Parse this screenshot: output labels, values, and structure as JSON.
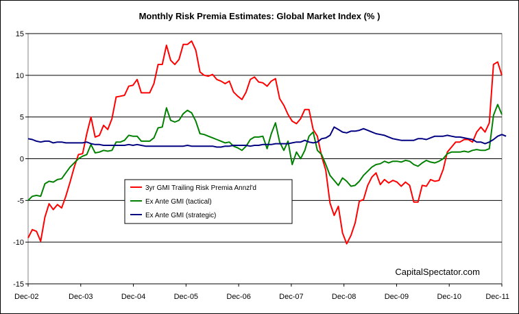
{
  "chart_data": {
    "type": "line",
    "title": "Monthly Risk Premia Estimates: Global Market Index (% )",
    "watermark": "CapitalSpectator.com",
    "ylim": [
      -15,
      15
    ],
    "yticks": [
      15,
      10,
      5,
      0,
      -5,
      -10,
      -15
    ],
    "x_start": "Dec-02",
    "x_end": "Dec-11",
    "xtick_labels": [
      "Dec-02",
      "Dec-03",
      "Dec-04",
      "Dec-05",
      "Dec-06",
      "Dec-07",
      "Dec-08",
      "Dec-09",
      "Dec-10",
      "Dec-11"
    ],
    "grid": "horizontal major gridlines",
    "legend_position": "center-left, inside plot",
    "series": [
      {
        "name": "3yr GMI Trailing Risk Premia Annzl'd",
        "color": "#ff0000",
        "values": [
          -9.5,
          -8.5,
          -8.7,
          -9.9,
          -7.0,
          -5.4,
          -6.1,
          -5.5,
          -5.9,
          -4.5,
          -2.8,
          -1.0,
          0.5,
          0.6,
          3.0,
          5.0,
          2.6,
          2.8,
          4.0,
          3.5,
          4.8,
          7.4,
          7.5,
          7.6,
          8.7,
          8.8,
          9.5,
          7.9,
          7.9,
          7.9,
          9.0,
          11.3,
          11.3,
          13.6,
          11.8,
          11.3,
          11.9,
          13.7,
          13.7,
          14.1,
          13.0,
          10.4,
          10.0,
          9.9,
          10.1,
          9.5,
          9.3,
          9.0,
          9.3,
          8.0,
          7.5,
          7.1,
          8.0,
          9.5,
          9.8,
          9.2,
          9.1,
          8.7,
          9.3,
          9.6,
          7.2,
          6.4,
          5.3,
          4.5,
          4.2,
          4.8,
          5.9,
          5.9,
          3.5,
          2.7,
          0.3,
          -1.4,
          -5.3,
          -6.8,
          -5.7,
          -8.9,
          -10.2,
          -9.2,
          -7.7,
          -5.1,
          -4.9,
          -3.2,
          -2.2,
          -1.7,
          -3.1,
          -2.5,
          -2.9,
          -2.6,
          -2.8,
          -3.3,
          -2.8,
          -3.2,
          -5.2,
          -5.2,
          -3.2,
          -3.3,
          -2.5,
          -2.7,
          -2.6,
          -1.3,
          0.8,
          1.4,
          2.0,
          2.0,
          2.3,
          2.3,
          2.0,
          3.2,
          3.8,
          3.2,
          4.3,
          11.3,
          11.6,
          10.0
        ]
      },
      {
        "name": "Ex Ante GMI (tactical)",
        "color": "#008000",
        "values": [
          -5.0,
          -4.5,
          -4.4,
          -4.5,
          -3.0,
          -2.7,
          -2.8,
          -2.5,
          -2.4,
          -1.7,
          -1.0,
          -0.5,
          0.0,
          0.3,
          0.5,
          1.7,
          0.7,
          0.8,
          1.0,
          0.9,
          1.0,
          2.0,
          2.0,
          2.2,
          2.8,
          2.7,
          2.7,
          2.1,
          2.1,
          2.1,
          2.5,
          3.7,
          3.8,
          6.1,
          4.6,
          4.4,
          4.6,
          5.4,
          5.8,
          5.5,
          4.5,
          3.0,
          2.9,
          2.7,
          2.5,
          2.3,
          2.1,
          1.9,
          2.0,
          1.5,
          1.3,
          1.0,
          1.5,
          2.3,
          2.6,
          2.6,
          2.7,
          1.2,
          3.0,
          4.3,
          2.0,
          1.0,
          2.1,
          -0.7,
          0.8,
          0.0,
          1.0,
          2.7,
          3.2,
          1.0,
          0.5,
          -0.7,
          -2.0,
          -2.6,
          -3.2,
          -2.3,
          -2.7,
          -3.3,
          -3.2,
          -2.7,
          -2.0,
          -1.5,
          -1.0,
          -0.7,
          -0.6,
          -0.3,
          -0.5,
          -0.3,
          -0.3,
          -0.4,
          -0.2,
          -0.3,
          -0.7,
          -0.9,
          -0.5,
          -0.2,
          -0.4,
          -0.5,
          -0.3,
          0.0,
          0.6,
          0.8,
          0.8,
          0.8,
          0.9,
          0.8,
          1.0,
          1.1,
          1.0,
          1.0,
          1.2,
          5.2,
          6.5,
          5.3
        ]
      },
      {
        "name": "Ex Ante GMI (strategic)",
        "color": "#000080",
        "values": [
          2.4,
          2.3,
          2.1,
          2.0,
          2.1,
          2.1,
          1.9,
          2.0,
          2.0,
          1.9,
          1.9,
          1.9,
          1.9,
          1.9,
          2.0,
          1.8,
          1.7,
          1.7,
          1.6,
          1.6,
          1.6,
          1.6,
          1.6,
          1.6,
          1.7,
          1.6,
          1.7,
          1.6,
          1.5,
          1.5,
          1.5,
          1.5,
          1.5,
          1.5,
          1.5,
          1.5,
          1.5,
          1.5,
          1.6,
          1.5,
          1.5,
          1.5,
          1.5,
          1.5,
          1.5,
          1.4,
          1.4,
          1.5,
          1.5,
          1.6,
          1.6,
          1.6,
          1.6,
          1.5,
          1.6,
          1.6,
          1.7,
          1.7,
          1.7,
          1.8,
          1.8,
          1.8,
          1.8,
          1.9,
          2.0,
          2.0,
          2.2,
          2.0,
          1.9,
          2.0,
          2.4,
          2.5,
          2.8,
          3.8,
          3.5,
          3.2,
          3.1,
          3.3,
          3.3,
          3.4,
          3.6,
          3.4,
          3.2,
          3.0,
          2.9,
          2.8,
          2.6,
          2.4,
          2.3,
          2.2,
          2.2,
          2.2,
          2.2,
          2.4,
          2.4,
          2.3,
          2.5,
          2.7,
          2.7,
          2.7,
          2.8,
          2.7,
          2.6,
          2.6,
          2.5,
          2.4,
          2.3,
          2.0,
          2.0,
          1.8,
          2.0,
          2.3,
          2.7,
          2.9,
          2.7
        ]
      }
    ]
  }
}
